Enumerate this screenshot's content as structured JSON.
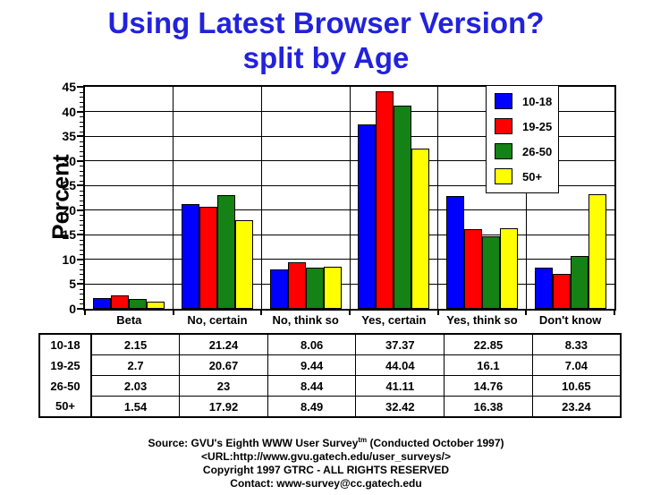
{
  "title": {
    "line1": "Using Latest Browser Version?",
    "line2": "split by Age"
  },
  "colors": {
    "title_blue": "#2222DD",
    "series_blue": "#0000FF",
    "series_red": "#FF0000",
    "series_green": "#148214",
    "series_yellow": "#FFFF00",
    "axis_black": "#000000",
    "background": "#FFFFFF"
  },
  "chart_data": {
    "type": "bar",
    "title": "Using Latest Browser Version? split by Age",
    "categories": [
      "Beta",
      "No, certain",
      "No, think so",
      "Yes, certain",
      "Yes, think so",
      "Don't know"
    ],
    "series": [
      {
        "name": "10-18",
        "color": "#0000FF",
        "values": [
          2.15,
          21.24,
          8.06,
          37.37,
          22.85,
          8.33
        ]
      },
      {
        "name": "19-25",
        "color": "#FF0000",
        "values": [
          2.7,
          20.67,
          9.44,
          44.04,
          16.1,
          7.04
        ]
      },
      {
        "name": "26-50",
        "color": "#148214",
        "values": [
          2.03,
          23,
          8.44,
          41.11,
          14.76,
          10.65
        ]
      },
      {
        "name": "50+",
        "color": "#FFFF00",
        "values": [
          1.54,
          17.92,
          8.49,
          32.42,
          16.38,
          23.24
        ]
      }
    ],
    "xlabel": "",
    "ylabel": "Percent",
    "ylim": [
      0,
      45
    ],
    "ytick_step": 5,
    "ytick_labels": [
      "0",
      "5",
      "10",
      "15",
      "20",
      "25",
      "30",
      "35",
      "40",
      "45"
    ],
    "minor_tick_step": 1,
    "grid": true,
    "legend_position": "top-right"
  },
  "table": {
    "row_labels": [
      "10-18",
      "19-25",
      "26-50",
      "50+"
    ],
    "columns": [
      "Beta",
      "No, certain",
      "No, think so",
      "Yes, certain",
      "Yes, think so",
      "Don't know"
    ],
    "rows": [
      [
        "2.15",
        "21.24",
        "8.06",
        "37.37",
        "22.85",
        "8.33"
      ],
      [
        "2.7",
        "20.67",
        "9.44",
        "44.04",
        "16.1",
        "7.04"
      ],
      [
        "2.03",
        "23",
        "8.44",
        "41.11",
        "14.76",
        "10.65"
      ],
      [
        "1.54",
        "17.92",
        "8.49",
        "32.42",
        "16.38",
        "23.24"
      ]
    ]
  },
  "footer": {
    "source_prefix": "Source: GVU's Eighth WWW User Survey",
    "source_sup": "tm",
    "source_suffix": " (Conducted October 1997)",
    "url_line": "<URL:http://www.gvu.gatech.edu/user_surveys/>",
    "copyright_line": "Copyright 1997 GTRC - ALL RIGHTS RESERVED",
    "contact_line": "Contact: www-survey@cc.gatech.edu"
  }
}
